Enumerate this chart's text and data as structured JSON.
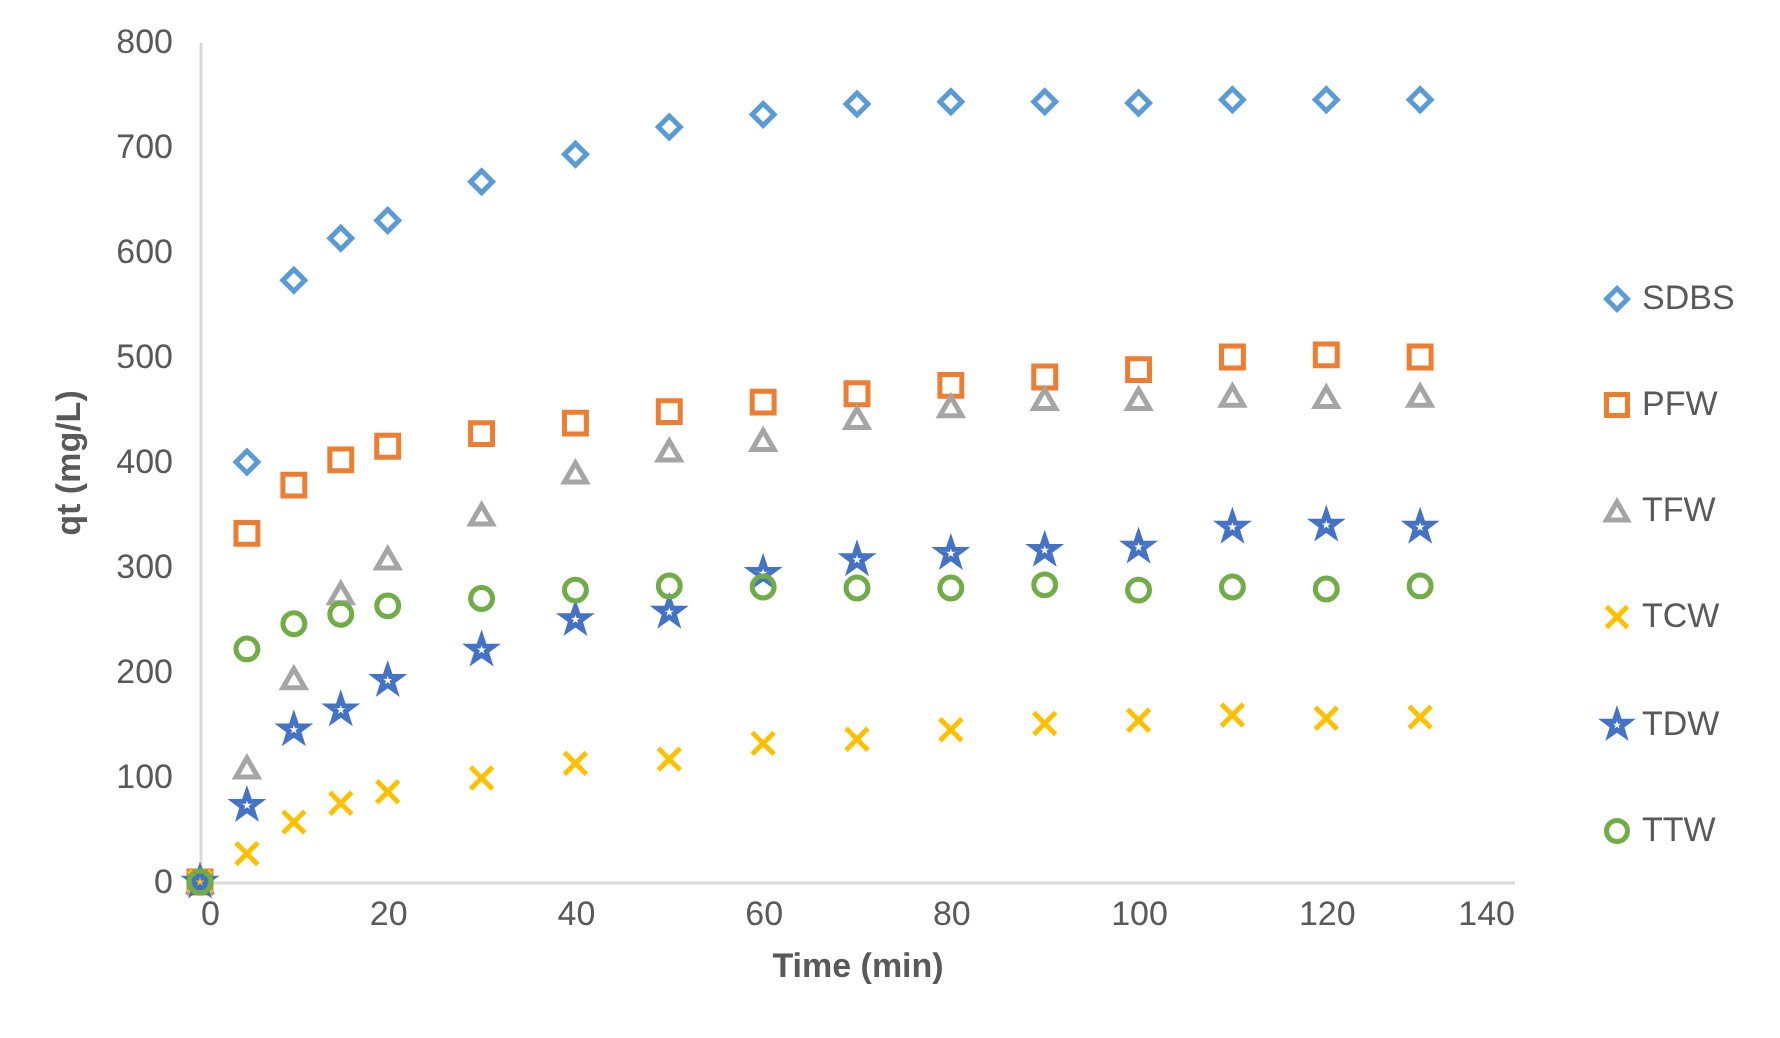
{
  "chart_data": {
    "type": "scatter",
    "xlabel": "Time (min)",
    "ylabel": "qt (mg/L)",
    "x": [
      0,
      5,
      10,
      15,
      20,
      30,
      40,
      50,
      60,
      70,
      80,
      90,
      100,
      110,
      120,
      130
    ],
    "xlim": [
      0,
      140
    ],
    "xticks": [
      0,
      20,
      40,
      60,
      80,
      100,
      120,
      140
    ],
    "ylim": [
      0,
      800
    ],
    "yticks": [
      0,
      100,
      200,
      300,
      400,
      500,
      600,
      700,
      800
    ],
    "grid": false,
    "legend": "right",
    "series": [
      {
        "name": "SDBS",
        "color": "#5b9bd5",
        "marker": "diamond",
        "values": [
          null,
          400,
          573,
          613,
          630,
          667,
          693,
          719,
          731,
          741,
          743,
          743,
          742,
          745,
          745,
          745
        ]
      },
      {
        "name": "PFW",
        "color": "#ed7d31",
        "marker": "square",
        "values": [
          0,
          332,
          378,
          402,
          415,
          427,
          437,
          448,
          457,
          465,
          473,
          481,
          488,
          500,
          502,
          500
        ]
      },
      {
        "name": "TFW",
        "color": "#a5a5a5",
        "marker": "triangle",
        "values": [
          0,
          109,
          194,
          275,
          308,
          350,
          390,
          411,
          421,
          442,
          453,
          460,
          460,
          463,
          462,
          463
        ]
      },
      {
        "name": "TCW",
        "color": "#ffc000",
        "marker": "cross",
        "values": [
          0,
          27,
          57,
          75,
          86,
          99,
          113,
          117,
          132,
          136,
          145,
          151,
          154,
          159,
          156,
          157
        ]
      },
      {
        "name": "TDW",
        "color": "#4472c4",
        "marker": "star",
        "values": [
          0,
          73,
          145,
          164,
          192,
          221,
          250,
          257,
          294,
          307,
          313,
          316,
          319,
          338,
          340,
          338
        ]
      },
      {
        "name": "TTW",
        "color": "#70ad47",
        "marker": "circle",
        "values": [
          0,
          222,
          246,
          255,
          263,
          270,
          278,
          282,
          281,
          280,
          280,
          283,
          278,
          281,
          279,
          282
        ]
      }
    ]
  }
}
